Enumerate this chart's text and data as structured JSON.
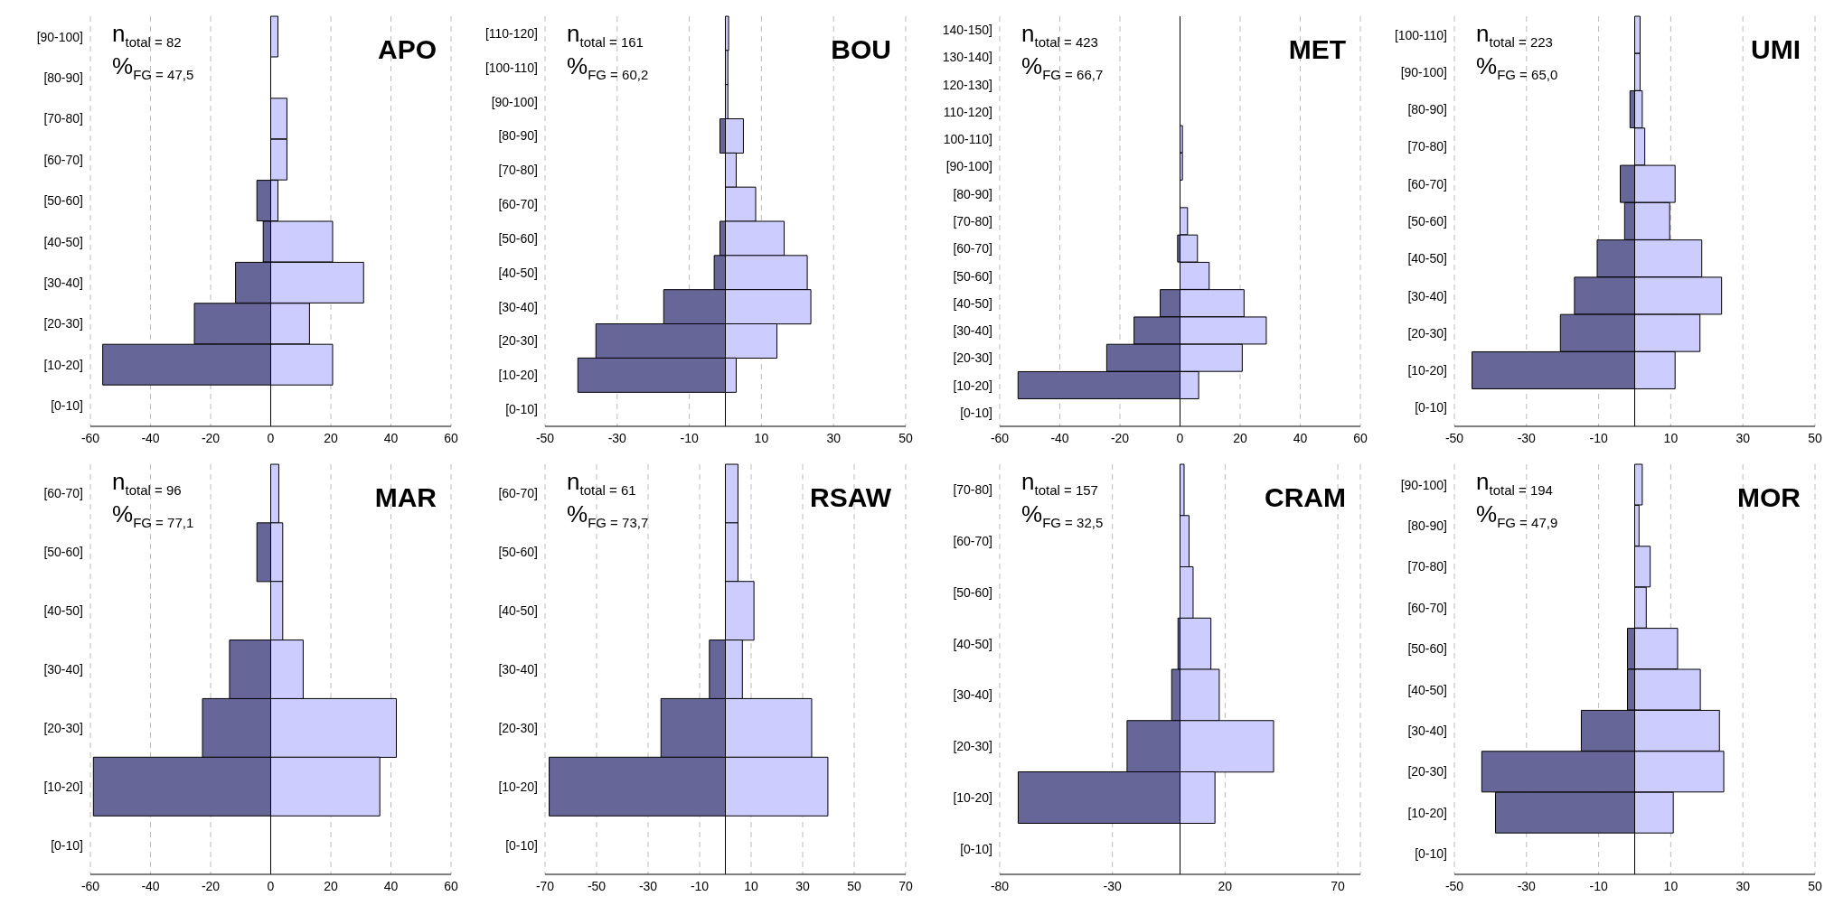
{
  "chart_data": [
    {
      "type": "bar",
      "orientation": "horizontal",
      "stacked": true,
      "title": "APO",
      "annotations": [
        "n$_{total = 82}$",
        "%$_{FG = 47,5}$"
      ],
      "categories": [
        "[90-100]",
        "[80-90]",
        "[70-80]",
        "[60-70]",
        "[50-60]",
        "[40-50]",
        "[30-40]",
        "[20-30]",
        "[10-20]",
        "[0-10]"
      ],
      "series": [
        {
          "color": "#666699",
          "values": [
            0,
            0,
            0,
            0,
            -4.6,
            -2.5,
            -11.7,
            -25.4,
            -55.9,
            0
          ]
        },
        {
          "color": "#ccccff",
          "values": [
            2.4,
            0,
            5.4,
            5.4,
            2.4,
            20.6,
            30.9,
            12.9,
            20.6,
            0
          ]
        }
      ],
      "xlim": [
        -60,
        60
      ],
      "xticks": [
        -60,
        -40,
        -20,
        0,
        20,
        40,
        60
      ],
      "grid": "x"
    },
    {
      "type": "bar",
      "orientation": "horizontal",
      "stacked": true,
      "title": "BOU",
      "annotations": [
        "n$_{total = 161}$",
        "%$_{FG = 60,2}$"
      ],
      "categories": [
        "[110-120]",
        "[100-110]",
        "[90-100]",
        "[80-90]",
        "[70-80]",
        "[60-70]",
        "[50-60]",
        "[40-50]",
        "[30-40]",
        "[20-30]",
        "[10-20]",
        "[0-10]"
      ],
      "series": [
        {
          "color": "#666699",
          "values": [
            0,
            0,
            0,
            -1.5,
            0,
            0,
            -1.5,
            -3.1,
            -17.1,
            -35.9,
            -40.9,
            0
          ]
        },
        {
          "color": "#ccccff",
          "values": [
            0.9,
            0.7,
            0.7,
            5.0,
            3.0,
            8.4,
            16.3,
            22.7,
            23.7,
            14.3,
            3.0,
            0
          ]
        }
      ],
      "xlim": [
        -50,
        50
      ],
      "xticks": [
        -50,
        -30,
        -10,
        10,
        30,
        50
      ],
      "grid": "x"
    },
    {
      "type": "bar",
      "orientation": "horizontal",
      "stacked": true,
      "title": "MET",
      "annotations": [
        "n$_{total = 423}$",
        "%$_{FG = 66,7}$"
      ],
      "categories": [
        "140-150]",
        "130-140]",
        "120-130]",
        "110-120]",
        "100-110]",
        "[90-100]",
        "[80-90]",
        "[70-80]",
        "[60-70]",
        "[50-60]",
        "[40-50]",
        "[30-40]",
        "[20-30]",
        "[10-20]",
        "[0-10]"
      ],
      "series": [
        {
          "color": "#666699",
          "values": [
            0,
            0,
            0,
            0,
            0,
            0,
            0,
            0,
            -0.8,
            0,
            -6.6,
            -15.3,
            -24.4,
            -53.9,
            0
          ]
        },
        {
          "color": "#ccccff",
          "values": [
            0,
            0,
            0,
            0,
            0.8,
            0.8,
            null,
            2.5,
            5.8,
            9.7,
            21.3,
            28.7,
            20.7,
            6.2,
            0
          ]
        }
      ],
      "xlim": [
        -60,
        60
      ],
      "xticks": [
        -60,
        -40,
        -20,
        0,
        20,
        40,
        60
      ],
      "grid": "x"
    },
    {
      "type": "bar",
      "orientation": "horizontal",
      "stacked": true,
      "title": "UMI",
      "annotations": [
        "n$_{total = 223}$",
        "%$_{FG = 65,0}$"
      ],
      "categories": [
        "[100-110]",
        "[90-100]",
        "[80-90]",
        "[70-80]",
        "[60-70]",
        "[50-60]",
        "[40-50]",
        "[30-40]",
        "[20-30]",
        "[10-20]",
        "[0-10]"
      ],
      "series": [
        {
          "color": "#666699",
          "values": [
            0,
            0,
            -1.3,
            0,
            -4.0,
            -2.8,
            -10.4,
            -16.7,
            -20.6,
            -45.1,
            0
          ]
        },
        {
          "color": "#ccccff",
          "values": [
            1.5,
            1.5,
            2.1,
            2.8,
            11.2,
            9.7,
            18.6,
            24.1,
            18.1,
            11.2,
            0
          ]
        }
      ],
      "xlim": [
        -50,
        50
      ],
      "xticks": [
        -50,
        -30,
        -10,
        10,
        30,
        50
      ],
      "grid": "x"
    },
    {
      "type": "bar",
      "orientation": "horizontal",
      "stacked": true,
      "title": "MAR",
      "annotations": [
        "n$_{total = 96}$",
        "%$_{FG = 77,1}$"
      ],
      "categories": [
        "[60-70]",
        "[50-60]",
        "[40-50]",
        "[30-40]",
        "[20-30]",
        "[10-20]",
        "[0-10]"
      ],
      "series": [
        {
          "color": "#666699",
          "values": [
            0,
            -4.6,
            0,
            -13.7,
            -22.7,
            -59.0,
            0
          ]
        },
        {
          "color": "#ccccff",
          "values": [
            2.7,
            4.0,
            4.0,
            10.8,
            41.8,
            36.3,
            0
          ]
        }
      ],
      "xlim": [
        -60,
        60
      ],
      "xticks": [
        -60,
        -40,
        -20,
        0,
        20,
        40,
        60
      ],
      "grid": "x"
    },
    {
      "type": "bar",
      "orientation": "horizontal",
      "stacked": true,
      "title": "RSAW",
      "annotations": [
        "n$_{total = 61}$",
        "%$_{FG = 73,7}$"
      ],
      "categories": [
        "[60-70]",
        "[50-60]",
        "[40-50]",
        "[30-40]",
        "[20-30]",
        "[10-20]",
        "[0-10]"
      ],
      "series": [
        {
          "color": "#666699",
          "values": [
            0,
            0,
            0,
            -6.2,
            -25.0,
            -68.4,
            0
          ]
        },
        {
          "color": "#ccccff",
          "values": [
            4.9,
            4.9,
            11.1,
            6.6,
            33.5,
            39.8,
            0
          ]
        }
      ],
      "xlim": [
        -70,
        70
      ],
      "xticks": [
        -70,
        -50,
        -30,
        -10,
        10,
        30,
        50,
        70
      ],
      "grid": "x"
    },
    {
      "type": "bar",
      "orientation": "horizontal",
      "stacked": true,
      "title": "CRAM",
      "annotations": [
        "n$_{total = 157}$",
        "%$_{FG = 32,5}$"
      ],
      "categories": [
        "[70-80]",
        "[60-70]",
        "[50-60]",
        "[40-50]",
        "[30-40]",
        "[20-30]",
        "[10-20]",
        "[0-10]"
      ],
      "series": [
        {
          "color": "#666699",
          "values": [
            0,
            0,
            0,
            -0.9,
            -3.7,
            -23.5,
            -71.8,
            0
          ]
        },
        {
          "color": "#ccccff",
          "values": [
            1.8,
            4.0,
            5.8,
            13.7,
            17.4,
            41.5,
            15.5,
            0
          ]
        }
      ],
      "xlim": [
        -80,
        80
      ],
      "xticks": [
        -80,
        -30,
        20,
        70
      ],
      "grid": "x"
    },
    {
      "type": "bar",
      "orientation": "horizontal",
      "stacked": true,
      "title": "MOR",
      "annotations": [
        "n$_{total = 194}$",
        "%$_{FG = 47,9}$"
      ],
      "categories": [
        "[90-100]",
        "[80-90]",
        "[70-80]",
        "[60-70]",
        "[50-60]",
        "[40-50]",
        "[30-40]",
        "[20-30]",
        "[10-20]",
        "[0-10]"
      ],
      "series": [
        {
          "color": "#666699",
          "values": [
            0,
            0,
            0,
            0,
            -2.0,
            -2.0,
            -14.8,
            -42.4,
            -38.6,
            0
          ]
        },
        {
          "color": "#ccccff",
          "values": [
            2.1,
            1.2,
            4.3,
            3.2,
            11.9,
            18.2,
            23.5,
            24.7,
            10.7,
            0
          ]
        }
      ],
      "xlim": [
        -50,
        50
      ],
      "xticks": [
        -50,
        -30,
        -10,
        10,
        30,
        50
      ],
      "grid": "x"
    }
  ]
}
